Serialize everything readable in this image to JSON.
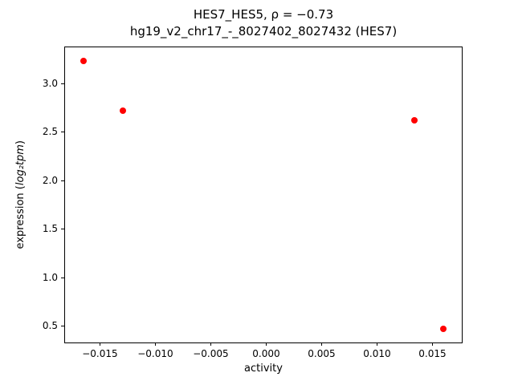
{
  "chart_data": {
    "type": "scatter",
    "title_line1": "HES7_HES5, ρ = −0.73",
    "title_line2": "hg19_v2_chr17_-_8027402_8027432 (HES7)",
    "xlabel": "activity",
    "ylabel_prefix": "expression (",
    "ylabel_math": "log₂tpm",
    "ylabel_suffix": ")",
    "marker_color": "#ff0000",
    "grid": false,
    "legend": null,
    "xlim": [
      -0.01815,
      0.01765
    ],
    "ylim": [
      0.33,
      3.37
    ],
    "xticks": [
      -0.015,
      -0.01,
      -0.005,
      0.0,
      0.005,
      0.01,
      0.015
    ],
    "xtick_labels": [
      "−0.015",
      "−0.010",
      "−0.005",
      "0.000",
      "0.005",
      "0.010",
      "0.015"
    ],
    "yticks": [
      0.5,
      1.0,
      1.5,
      2.0,
      2.5,
      3.0
    ],
    "ytick_labels": [
      "0.5",
      "1.0",
      "1.5",
      "2.0",
      "2.5",
      "3.0"
    ],
    "points": [
      {
        "x": -0.0165,
        "y": 3.23
      },
      {
        "x": -0.0129,
        "y": 2.72
      },
      {
        "x": 0.0134,
        "y": 2.62
      },
      {
        "x": 0.016,
        "y": 0.47
      }
    ]
  }
}
